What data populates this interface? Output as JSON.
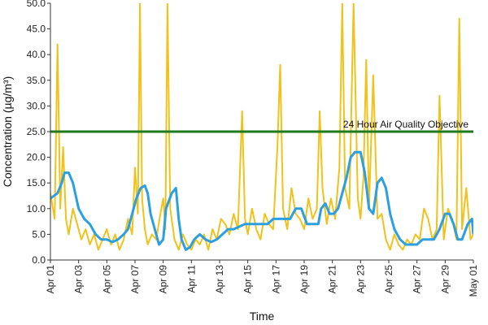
{
  "chart_data": {
    "type": "line",
    "xlabel": "Time",
    "ylabel": "Concentration (µg/m³)",
    "ylim": [
      0,
      50
    ],
    "y_ticks": [
      "0.0",
      "5.0",
      "10.0",
      "15.0",
      "20.0",
      "25.0",
      "30.0",
      "35.0",
      "40.0",
      "45.0",
      "50.0"
    ],
    "x_ticks": [
      "Apr 01",
      "Apr 03",
      "Apr 05",
      "Apr 07",
      "Apr 09",
      "Apr 11",
      "Apr 13",
      "Apr 15",
      "Apr 17",
      "Apr 19",
      "Apr 21",
      "Apr 23",
      "Apr 25",
      "Apr 27",
      "Apr 29",
      "May 01"
    ],
    "x_tick_days": [
      0,
      2,
      4,
      6,
      8,
      10,
      12,
      14,
      16,
      18,
      20,
      22,
      24,
      26,
      28,
      30
    ],
    "xlim_days": [
      0,
      30
    ],
    "grid": false,
    "legend": "none",
    "colors": {
      "hourly": "#f1c21b",
      "rolling_24h": "#2b9fe0",
      "objective": "#1e7a1e"
    },
    "annotation": {
      "text": "24 Hour Air Quality Objective",
      "y": 25
    },
    "series": [
      {
        "x_days": [
          0.0,
          0.3,
          0.5,
          0.7,
          0.9,
          1.1,
          1.3,
          1.6,
          1.9,
          2.2,
          2.5,
          2.8,
          3.1,
          3.4,
          3.7,
          4.0,
          4.3,
          4.6,
          4.9,
          5.2,
          5.5,
          5.8,
          6.0,
          6.2,
          6.35,
          6.5,
          6.7,
          6.9,
          7.2,
          7.5,
          7.8,
          8.0,
          8.15,
          8.3,
          8.5,
          8.8,
          9.1,
          9.4,
          9.7,
          10.0,
          10.3,
          10.6,
          10.9,
          11.2,
          11.5,
          11.8,
          12.1,
          12.4,
          12.7,
          13.0,
          13.3,
          13.6,
          13.8,
          14.0,
          14.3,
          14.6,
          14.9,
          15.2,
          15.5,
          15.8,
          16.1,
          16.3,
          16.5,
          16.8,
          17.1,
          17.4,
          17.7,
          18.0,
          18.3,
          18.6,
          18.9,
          19.1,
          19.3,
          19.6,
          19.9,
          20.2,
          20.5,
          20.7,
          20.9,
          21.2,
          21.5,
          21.8,
          22.0,
          22.2,
          22.4,
          22.6,
          22.9,
          23.2,
          23.5,
          23.8,
          24.1,
          24.4,
          24.7,
          25.0,
          25.3,
          25.6,
          25.9,
          26.2,
          26.5,
          26.8,
          27.1,
          27.4,
          27.6,
          27.9,
          28.2,
          28.5,
          28.8,
          29.0,
          29.2,
          29.5,
          29.8,
          30.0
        ],
        "y": [
          13,
          8,
          42,
          10,
          22,
          8,
          5,
          10,
          7,
          4,
          6,
          3,
          5,
          2,
          4,
          6,
          3,
          5,
          2,
          4,
          8,
          5,
          18,
          9,
          52,
          12,
          6,
          3,
          5,
          4,
          9,
          12,
          6,
          52,
          10,
          4,
          2,
          5,
          3,
          2,
          4,
          3,
          5,
          2,
          6,
          4,
          8,
          7,
          5,
          9,
          6,
          29,
          8,
          5,
          10,
          6,
          4,
          9,
          7,
          6,
          22,
          38,
          10,
          6,
          14,
          9,
          8,
          6,
          12,
          8,
          10,
          29,
          14,
          7,
          12,
          8,
          18,
          52,
          14,
          10,
          52,
          12,
          8,
          16,
          39,
          10,
          36,
          8,
          9,
          4,
          2,
          5,
          3,
          2,
          4,
          3,
          5,
          4,
          10,
          8,
          4,
          6,
          32,
          4,
          10,
          8,
          4,
          47,
          6,
          14,
          4,
          5
        ]
      },
      {
        "x_days": [
          0.0,
          0.5,
          0.8,
          1.0,
          1.3,
          1.6,
          2.0,
          2.4,
          2.8,
          3.2,
          3.6,
          4.0,
          4.4,
          4.8,
          5.2,
          5.5,
          5.8,
          6.1,
          6.4,
          6.7,
          6.9,
          7.1,
          7.4,
          7.7,
          8.0,
          8.2,
          8.6,
          8.9,
          9.1,
          9.3,
          9.6,
          9.9,
          10.2,
          10.6,
          11.0,
          11.4,
          11.8,
          12.2,
          12.6,
          13.0,
          13.4,
          13.8,
          14.2,
          14.6,
          15.0,
          15.4,
          15.8,
          16.2,
          16.6,
          17.0,
          17.4,
          17.8,
          18.2,
          18.6,
          19.0,
          19.2,
          19.5,
          19.8,
          20.1,
          20.4,
          20.7,
          21.0,
          21.3,
          21.6,
          22.0,
          22.3,
          22.6,
          22.9,
          23.2,
          23.5,
          23.8,
          24.1,
          24.4,
          24.8,
          25.2,
          25.6,
          26.0,
          26.4,
          26.8,
          27.2,
          27.6,
          28.0,
          28.3,
          28.6,
          28.9,
          29.2,
          29.6,
          29.9,
          30.0
        ],
        "y": [
          12,
          13,
          15,
          17,
          17,
          15,
          10,
          8,
          7,
          5,
          4,
          4,
          3.5,
          4,
          5,
          6,
          9,
          12,
          14,
          14.5,
          13,
          9,
          6,
          3,
          4,
          10,
          13,
          14,
          8,
          4,
          2,
          2.5,
          4,
          5,
          4,
          3.5,
          4,
          5,
          6,
          6,
          6.5,
          7,
          7,
          7,
          7,
          7,
          8,
          8,
          8,
          8,
          10,
          10,
          7,
          7,
          7,
          10,
          11,
          9,
          9,
          10,
          13,
          16,
          20,
          21,
          21,
          17,
          10,
          9,
          15,
          16,
          14,
          9,
          6,
          4,
          3,
          3,
          3,
          4,
          4,
          4,
          6,
          9,
          9,
          7,
          4,
          4,
          7,
          8,
          5
        ]
      }
    ]
  }
}
